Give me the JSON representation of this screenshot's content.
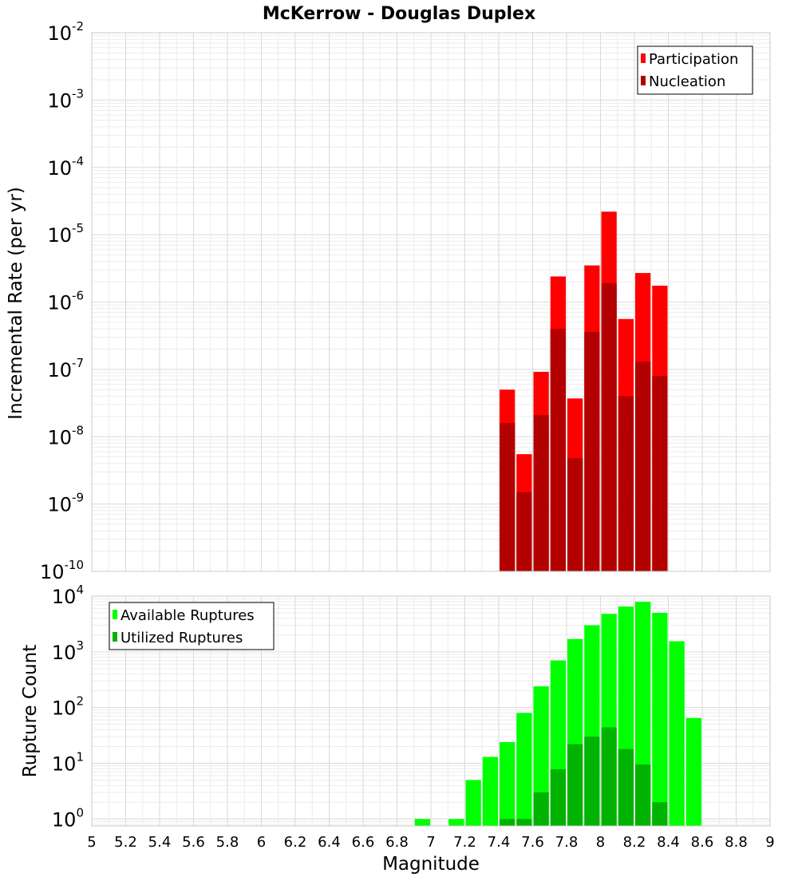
{
  "title": "McKerrow - Douglas Duplex",
  "xlabel": "Magnitude",
  "x_ticks": [
    "5",
    "5.2",
    "5.4",
    "5.6",
    "5.8",
    "6",
    "6.2",
    "6.4",
    "6.6",
    "6.8",
    "7",
    "7.2",
    "7.4",
    "7.6",
    "7.8",
    "8",
    "8.2",
    "8.4",
    "8.6",
    "8.8",
    "9"
  ],
  "chart_data": [
    {
      "type": "bar",
      "ylabel": "Incremental Rate (per yr)",
      "yscale": "log",
      "ylim": [
        1e-10,
        0.01
      ],
      "xlim": [
        5,
        9
      ],
      "y_tick_exponents": [
        "-10",
        "-9",
        "-8",
        "-7",
        "-6",
        "-5",
        "-4",
        "-3",
        "-2"
      ],
      "grid": true,
      "legend_position": "top-right",
      "x": [
        7.45,
        7.55,
        7.65,
        7.75,
        7.85,
        7.95,
        8.05,
        8.15,
        8.25,
        8.35
      ],
      "series": [
        {
          "name": "Participation",
          "color": "#ff0000",
          "values": [
            5e-08,
            5.5e-09,
            9.2e-08,
            2.4e-06,
            3.7e-08,
            3.5e-06,
            2.2e-05,
            5.6e-07,
            2.7e-06,
            1.75e-06
          ]
        },
        {
          "name": "Nucleation",
          "color": "#b30000",
          "values": [
            1.6e-08,
            1.5e-09,
            2.1e-08,
            4e-07,
            4.8e-09,
            3.6e-07,
            1.9e-06,
            4e-08,
            1.3e-07,
            8e-08
          ]
        }
      ]
    },
    {
      "type": "bar",
      "ylabel": "Rupture Count",
      "yscale": "log",
      "ylim": [
        0.75,
        10000
      ],
      "xlim": [
        5,
        9
      ],
      "y_tick_exponents": [
        "0",
        "1",
        "2",
        "3",
        "4"
      ],
      "grid": true,
      "legend_position": "top-left",
      "x": [
        6.95,
        7.15,
        7.25,
        7.35,
        7.45,
        7.55,
        7.65,
        7.75,
        7.85,
        7.95,
        8.05,
        8.15,
        8.25,
        8.35,
        8.45,
        8.55
      ],
      "series": [
        {
          "name": "Available Ruptures",
          "color": "#00ff00",
          "values": [
            1,
            1,
            5,
            13,
            24,
            80,
            240,
            700,
            1700,
            3000,
            4800,
            6500,
            7900,
            5000,
            1550,
            65
          ]
        },
        {
          "name": "Utilized Ruptures",
          "color": "#00b300",
          "values": [
            null,
            null,
            null,
            null,
            1,
            1,
            3,
            7.8,
            22,
            30,
            44,
            18,
            9.5,
            2,
            null,
            null
          ]
        }
      ]
    }
  ]
}
